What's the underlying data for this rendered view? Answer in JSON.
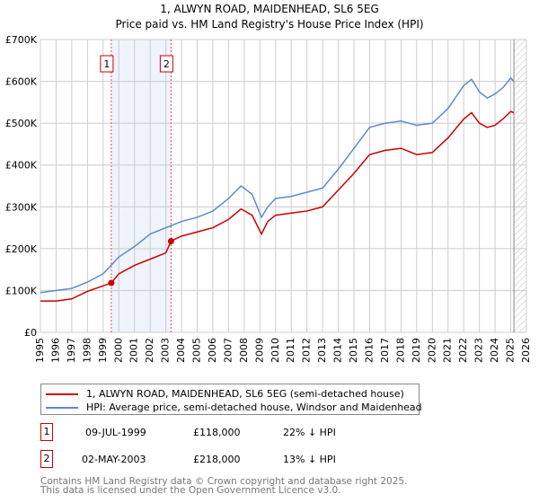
{
  "chart_data": {
    "type": "line",
    "title": "1, ALWYN ROAD, MAIDENHEAD, SL6 5EG",
    "subtitle": "Price paid vs. HM Land Registry's House Price Index (HPI)",
    "xlim": [
      1995,
      2026
    ],
    "ylim": [
      0,
      700000
    ],
    "y_ticks": [
      {
        "v": 0,
        "label": "£0"
      },
      {
        "v": 100000,
        "label": "£100K"
      },
      {
        "v": 200000,
        "label": "£200K"
      },
      {
        "v": 300000,
        "label": "£300K"
      },
      {
        "v": 400000,
        "label": "£400K"
      },
      {
        "v": 500000,
        "label": "£500K"
      },
      {
        "v": 600000,
        "label": "£600K"
      },
      {
        "v": 700000,
        "label": "£700K"
      }
    ],
    "x_ticks": [
      "1995",
      "1996",
      "1997",
      "1998",
      "1999",
      "2000",
      "2001",
      "2002",
      "2003",
      "2004",
      "2005",
      "2006",
      "2007",
      "2008",
      "2009",
      "2010",
      "2011",
      "2012",
      "2013",
      "2014",
      "2015",
      "2016",
      "2017",
      "2018",
      "2019",
      "2020",
      "2021",
      "2022",
      "2023",
      "2024",
      "2025",
      "2026"
    ],
    "grid": true,
    "shaded_range": [
      1999.52,
      2003.33
    ],
    "future_hatch_from": 2025.2,
    "series": [
      {
        "name": "1, ALWYN ROAD, MAIDENHEAD, SL6 5EG (semi-detached house)",
        "color": "#cc0000",
        "x": [
          1995,
          1996,
          1997,
          1998,
          1999.52,
          2000,
          2001,
          2002,
          2003.0,
          2003.33,
          2004,
          2005,
          2006,
          2007,
          2007.8,
          2008.5,
          2009.1,
          2009.5,
          2010,
          2011,
          2012,
          2013,
          2014,
          2015,
          2016,
          2017,
          2018,
          2019,
          2020,
          2021,
          2022,
          2022.5,
          2023,
          2023.5,
          2024,
          2024.5,
          2025,
          2025.2
        ],
        "y": [
          75000,
          75000,
          80000,
          98000,
          118000,
          140000,
          160000,
          175000,
          190000,
          218000,
          230000,
          240000,
          250000,
          270000,
          295000,
          280000,
          235000,
          265000,
          280000,
          285000,
          290000,
          300000,
          340000,
          380000,
          425000,
          435000,
          440000,
          425000,
          430000,
          465000,
          510000,
          525000,
          500000,
          490000,
          495000,
          510000,
          528000,
          525000
        ]
      },
      {
        "name": "HPI: Average price, semi-detached house, Windsor and Maidenhead",
        "color": "#5b8bd0",
        "x": [
          1995,
          1996,
          1997,
          1998,
          1999,
          2000,
          2001,
          2002,
          2003,
          2004,
          2005,
          2006,
          2007,
          2007.8,
          2008.5,
          2009.1,
          2009.5,
          2010,
          2011,
          2012,
          2013,
          2014,
          2015,
          2016,
          2017,
          2018,
          2019,
          2020,
          2021,
          2022,
          2022.5,
          2023,
          2023.5,
          2024,
          2024.5,
          2025,
          2025.2
        ],
        "y": [
          95000,
          100000,
          105000,
          120000,
          140000,
          180000,
          205000,
          235000,
          250000,
          265000,
          275000,
          290000,
          320000,
          350000,
          330000,
          275000,
          300000,
          320000,
          325000,
          335000,
          345000,
          390000,
          440000,
          490000,
          500000,
          505000,
          495000,
          500000,
          535000,
          590000,
          605000,
          575000,
          560000,
          570000,
          585000,
          608000,
          600000
        ]
      }
    ],
    "sales": [
      {
        "id": "1",
        "x": 1999.52,
        "y": 118000,
        "date": "09-JUL-1999",
        "price": "£118,000",
        "hpi": "22% ↓ HPI"
      },
      {
        "id": "2",
        "x": 2003.33,
        "y": 218000,
        "date": "02-MAY-2003",
        "price": "£218,000",
        "hpi": "13% ↓ HPI"
      }
    ],
    "legend_position": "below"
  },
  "footer": {
    "line1": "Contains HM Land Registry data © Crown copyright and database right 2025.",
    "line2": "This data is licensed under the Open Government Licence v3.0."
  }
}
